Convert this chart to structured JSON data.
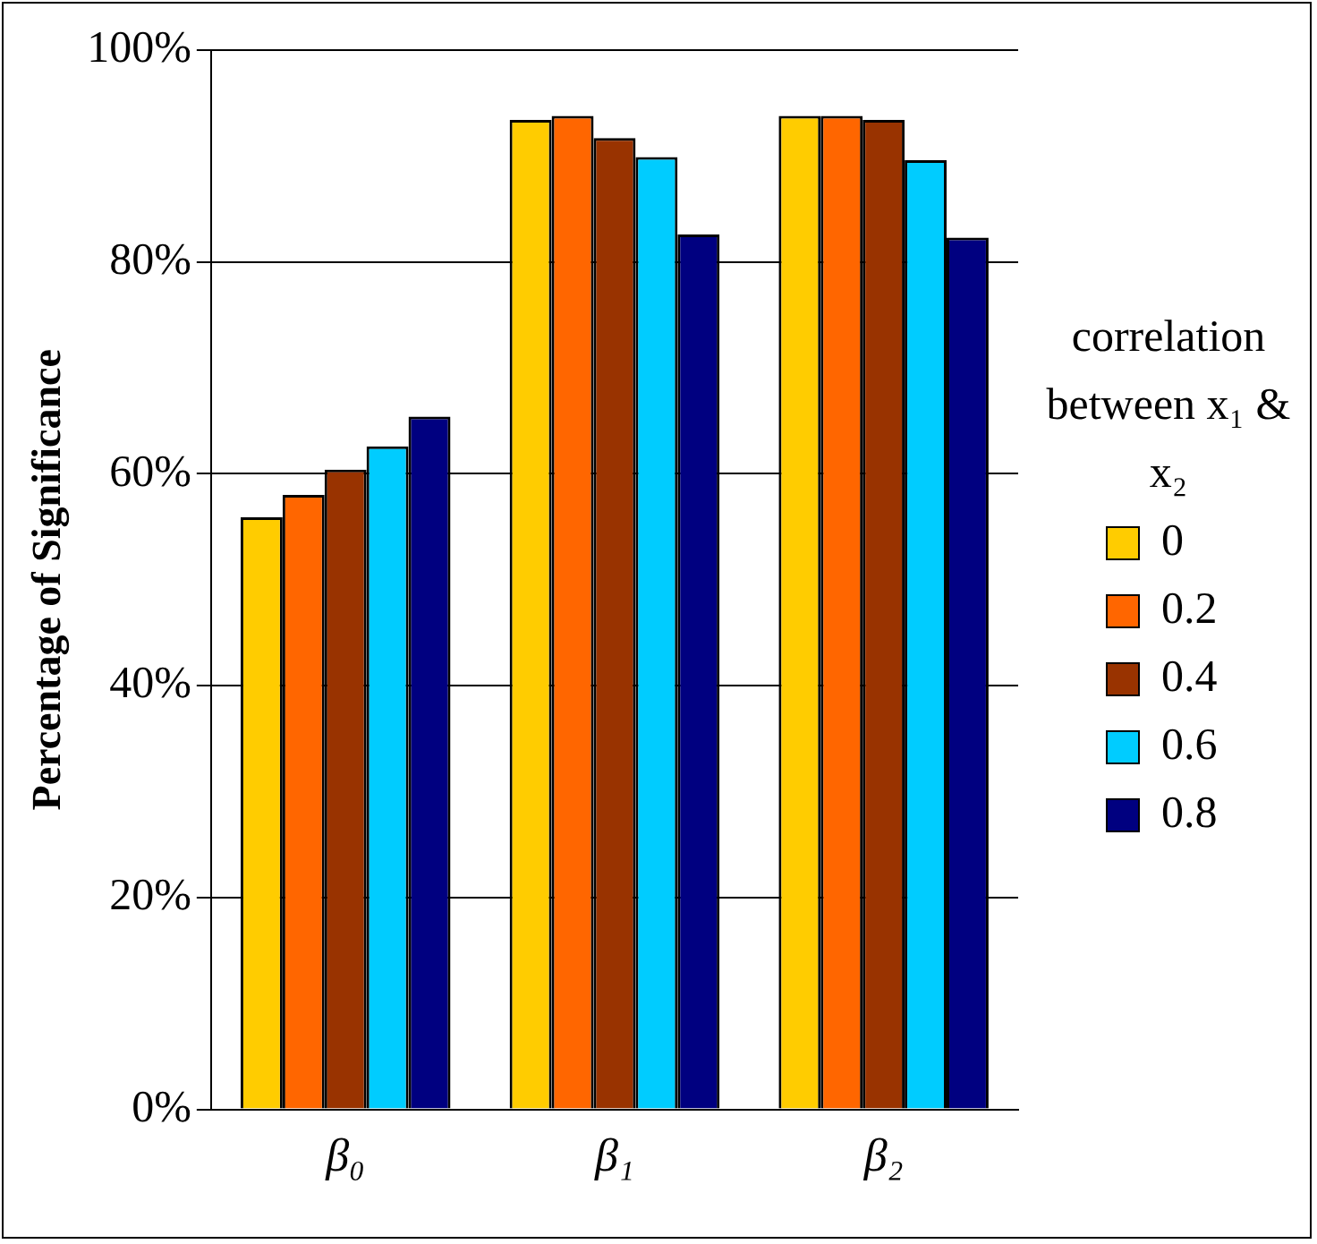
{
  "chart_data": {
    "type": "bar",
    "ylabel": "Percentage of Significance",
    "legend_title": "correlation between x₁ & x₂",
    "categories": [
      "β₀",
      "β₁",
      "β₂"
    ],
    "series": [
      {
        "name": "0",
        "color": "#ffcc00",
        "values": [
          55.9,
          93.4,
          93.8
        ]
      },
      {
        "name": "0.2",
        "color": "#ff6600",
        "values": [
          58.0,
          93.8,
          93.8
        ]
      },
      {
        "name": "0.4",
        "color": "#993300",
        "values": [
          60.4,
          91.7,
          93.4
        ]
      },
      {
        "name": "0.6",
        "color": "#00ccff",
        "values": [
          62.6,
          89.9,
          89.6
        ]
      },
      {
        "name": "0.8",
        "color": "#000080",
        "values": [
          65.4,
          82.6,
          82.3
        ]
      }
    ],
    "ylim": [
      0,
      100
    ],
    "yticks": [
      {
        "value": 0,
        "label": "0%"
      },
      {
        "value": 20,
        "label": "20%"
      },
      {
        "value": 40,
        "label": "40%"
      },
      {
        "value": 60,
        "label": "60%"
      },
      {
        "value": 80,
        "label": "80%"
      },
      {
        "value": 100,
        "label": "100%"
      }
    ],
    "grid": "y",
    "legend": "right"
  }
}
